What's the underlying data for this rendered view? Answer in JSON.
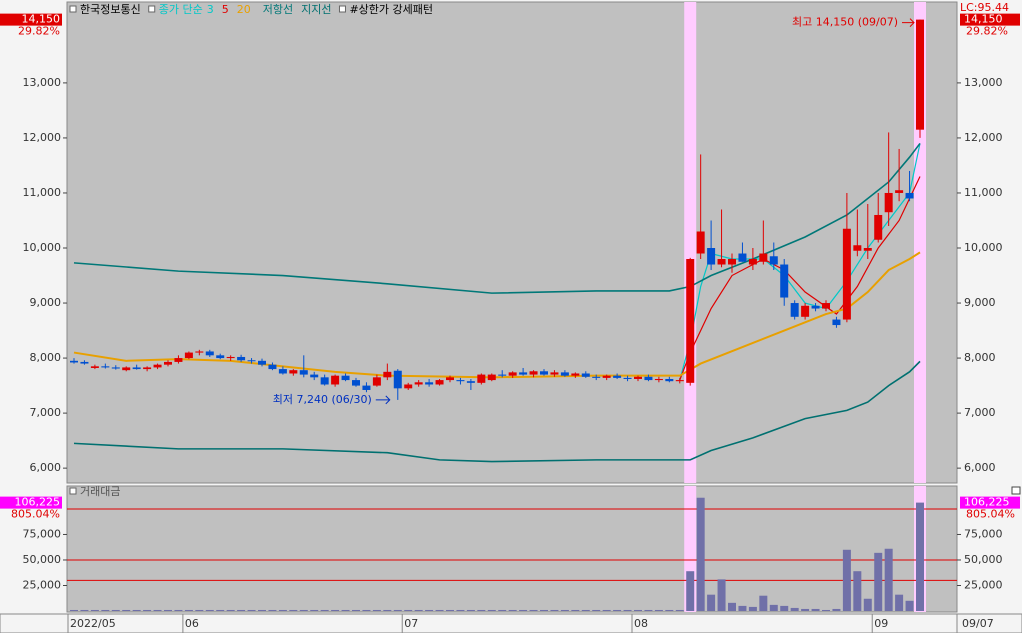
{
  "chart_data": {
    "type": "candlestick",
    "title": "한국정보통신",
    "ma_label": "종가 단순",
    "pattern_label": "#상한가 강세패턴",
    "lc_label": "LC:95.44",
    "last_price": {
      "value": 14150,
      "label": "14,150"
    },
    "change_label": "29.82%",
    "high_note": "최고 14,150 (09/07)",
    "low_note": "최저 7,240 (06/30)",
    "last_date": "09/07",
    "ylim": [
      5730,
      14470
    ],
    "yticks": [
      {
        "value": 6000,
        "label": "6,000"
      },
      {
        "value": 7000,
        "label": "7,000"
      },
      {
        "value": 8000,
        "label": "8,000"
      },
      {
        "value": 9000,
        "label": "9,000"
      },
      {
        "value": 10000,
        "label": "10,000"
      },
      {
        "value": 11000,
        "label": "11,000"
      },
      {
        "value": 12000,
        "label": "12,000"
      },
      {
        "value": 13000,
        "label": "13,000"
      }
    ],
    "xlim": [
      -0.5,
      82
    ],
    "xticks": [
      {
        "value": 0,
        "label": "2022/05"
      },
      {
        "value": 11,
        "label": "06"
      },
      {
        "value": 32,
        "label": "07"
      },
      {
        "value": 54,
        "label": "08"
      },
      {
        "value": 77,
        "label": "09"
      }
    ],
    "highlight": [
      59,
      81
    ],
    "candles": [
      {
        "open": 7950,
        "high": 8000,
        "low": 7900,
        "close": 7920
      },
      {
        "open": 7930,
        "high": 7960,
        "low": 7880,
        "close": 7900
      },
      {
        "open": 7820,
        "high": 7880,
        "low": 7800,
        "close": 7850
      },
      {
        "open": 7850,
        "high": 7900,
        "low": 7810,
        "close": 7830
      },
      {
        "open": 7830,
        "high": 7870,
        "low": 7790,
        "close": 7810
      },
      {
        "open": 7780,
        "high": 7850,
        "low": 7760,
        "close": 7830
      },
      {
        "open": 7830,
        "high": 7880,
        "low": 7790,
        "close": 7800
      },
      {
        "open": 7800,
        "high": 7850,
        "low": 7760,
        "close": 7830
      },
      {
        "open": 7830,
        "high": 7900,
        "low": 7800,
        "close": 7880
      },
      {
        "open": 7880,
        "high": 7960,
        "low": 7850,
        "close": 7930
      },
      {
        "open": 7930,
        "high": 8050,
        "low": 7900,
        "close": 8000
      },
      {
        "open": 8000,
        "high": 8120,
        "low": 7980,
        "close": 8100
      },
      {
        "open": 8100,
        "high": 8150,
        "low": 8050,
        "close": 8120
      },
      {
        "open": 8120,
        "high": 8150,
        "low": 8020,
        "close": 8050
      },
      {
        "open": 8050,
        "high": 8080,
        "low": 7980,
        "close": 8000
      },
      {
        "open": 8000,
        "high": 8050,
        "low": 7950,
        "close": 8020
      },
      {
        "open": 8020,
        "high": 8060,
        "low": 7930,
        "close": 7960
      },
      {
        "open": 7960,
        "high": 8000,
        "low": 7900,
        "close": 7950
      },
      {
        "open": 7950,
        "high": 7990,
        "low": 7850,
        "close": 7880
      },
      {
        "open": 7880,
        "high": 7920,
        "low": 7780,
        "close": 7800
      },
      {
        "open": 7800,
        "high": 7850,
        "low": 7700,
        "close": 7720
      },
      {
        "open": 7720,
        "high": 7800,
        "low": 7680,
        "close": 7780
      },
      {
        "open": 7780,
        "high": 8050,
        "low": 7650,
        "close": 7700
      },
      {
        "open": 7700,
        "high": 7750,
        "low": 7600,
        "close": 7650
      },
      {
        "open": 7650,
        "high": 7700,
        "low": 7500,
        "close": 7520
      },
      {
        "open": 7520,
        "high": 7700,
        "low": 7480,
        "close": 7680
      },
      {
        "open": 7680,
        "high": 7720,
        "low": 7580,
        "close": 7600
      },
      {
        "open": 7600,
        "high": 7640,
        "low": 7480,
        "close": 7500
      },
      {
        "open": 7500,
        "high": 7560,
        "low": 7380,
        "close": 7420
      },
      {
        "open": 7500,
        "high": 7700,
        "low": 7480,
        "close": 7650
      },
      {
        "open": 7650,
        "high": 7900,
        "low": 7600,
        "close": 7750
      },
      {
        "open": 7770,
        "high": 7800,
        "low": 7240,
        "close": 7450
      },
      {
        "open": 7450,
        "high": 7550,
        "low": 7420,
        "close": 7520
      },
      {
        "open": 7520,
        "high": 7600,
        "low": 7480,
        "close": 7560
      },
      {
        "open": 7560,
        "high": 7620,
        "low": 7480,
        "close": 7520
      },
      {
        "open": 7520,
        "high": 7620,
        "low": 7500,
        "close": 7600
      },
      {
        "open": 7600,
        "high": 7680,
        "low": 7560,
        "close": 7650
      },
      {
        "open": 7600,
        "high": 7640,
        "low": 7520,
        "close": 7580
      },
      {
        "open": 7580,
        "high": 7620,
        "low": 7420,
        "close": 7550
      },
      {
        "open": 7550,
        "high": 7720,
        "low": 7520,
        "close": 7700
      },
      {
        "open": 7600,
        "high": 7720,
        "low": 7580,
        "close": 7700
      },
      {
        "open": 7700,
        "high": 7780,
        "low": 7650,
        "close": 7680
      },
      {
        "open": 7680,
        "high": 7760,
        "low": 7640,
        "close": 7740
      },
      {
        "open": 7740,
        "high": 7820,
        "low": 7680,
        "close": 7700
      },
      {
        "open": 7700,
        "high": 7780,
        "low": 7650,
        "close": 7760
      },
      {
        "open": 7760,
        "high": 7800,
        "low": 7680,
        "close": 7700
      },
      {
        "open": 7700,
        "high": 7780,
        "low": 7660,
        "close": 7740
      },
      {
        "open": 7740,
        "high": 7780,
        "low": 7660,
        "close": 7680
      },
      {
        "open": 7680,
        "high": 7740,
        "low": 7640,
        "close": 7720
      },
      {
        "open": 7720,
        "high": 7760,
        "low": 7640,
        "close": 7660
      },
      {
        "open": 7660,
        "high": 7700,
        "low": 7600,
        "close": 7640
      },
      {
        "open": 7640,
        "high": 7700,
        "low": 7600,
        "close": 7680
      },
      {
        "open": 7680,
        "high": 7720,
        "low": 7620,
        "close": 7640
      },
      {
        "open": 7640,
        "high": 7680,
        "low": 7580,
        "close": 7620
      },
      {
        "open": 7620,
        "high": 7680,
        "low": 7580,
        "close": 7660
      },
      {
        "open": 7660,
        "high": 7700,
        "low": 7580,
        "close": 7600
      },
      {
        "open": 7600,
        "high": 7660,
        "low": 7560,
        "close": 7620
      },
      {
        "open": 7620,
        "high": 7660,
        "low": 7560,
        "close": 7580
      },
      {
        "open": 7580,
        "high": 7640,
        "low": 7540,
        "close": 7600
      },
      {
        "open": 7550,
        "high": 9820,
        "low": 7500,
        "close": 9800
      },
      {
        "open": 9900,
        "high": 11700,
        "low": 9800,
        "close": 10300
      },
      {
        "open": 10000,
        "high": 10500,
        "low": 9600,
        "close": 9700
      },
      {
        "open": 9700,
        "high": 10700,
        "low": 9650,
        "close": 9800
      },
      {
        "open": 9700,
        "high": 9900,
        "low": 9550,
        "close": 9800
      },
      {
        "open": 9900,
        "high": 10100,
        "low": 9750,
        "close": 9750
      },
      {
        "open": 9700,
        "high": 10000,
        "low": 9600,
        "close": 9800
      },
      {
        "open": 9750,
        "high": 10500,
        "low": 9700,
        "close": 9900
      },
      {
        "open": 9850,
        "high": 10100,
        "low": 9600,
        "close": 9700
      },
      {
        "open": 9700,
        "high": 9800,
        "low": 8950,
        "close": 9100
      },
      {
        "open": 9000,
        "high": 9050,
        "low": 8700,
        "close": 8750
      },
      {
        "open": 8750,
        "high": 9000,
        "low": 8700,
        "close": 8950
      },
      {
        "open": 8950,
        "high": 9000,
        "low": 8850,
        "close": 8900
      },
      {
        "open": 8900,
        "high": 9050,
        "low": 8850,
        "close": 9000
      },
      {
        "open": 8700,
        "high": 8750,
        "low": 8550,
        "close": 8600
      },
      {
        "open": 8700,
        "high": 11000,
        "low": 8650,
        "close": 10350
      },
      {
        "open": 9950,
        "high": 10700,
        "low": 9850,
        "close": 10050
      },
      {
        "open": 9950,
        "high": 10800,
        "low": 9800,
        "close": 10000
      },
      {
        "open": 10150,
        "high": 11000,
        "low": 10100,
        "close": 10600
      },
      {
        "open": 10650,
        "high": 12100,
        "low": 10400,
        "close": 11000
      },
      {
        "open": 11000,
        "high": 11800,
        "low": 10850,
        "close": 11050
      },
      {
        "open": 11000,
        "high": 11400,
        "low": 10850,
        "close": 10900
      },
      {
        "open": 12150,
        "high": 14150,
        "low": 12000,
        "close": 14150
      }
    ],
    "lines": [
      {
        "name": "3",
        "color": "#00c8c8",
        "x": [
          58,
          59,
          60,
          61,
          63,
          66,
          68,
          70,
          72,
          74,
          76,
          78,
          80,
          81
        ],
        "values": [
          7600,
          8300,
          9300,
          9900,
          9800,
          9800,
          9500,
          9000,
          8900,
          9400,
          10000,
          10500,
          11000,
          11900
        ]
      },
      {
        "name": "5",
        "color": "#e00000",
        "x": [
          58,
          59,
          61,
          63,
          66,
          68,
          70,
          73,
          75,
          77,
          79,
          81
        ],
        "values": [
          7600,
          8100,
          8900,
          9500,
          9800,
          9600,
          9200,
          8800,
          9300,
          10000,
          10500,
          11300
        ]
      },
      {
        "name": "20",
        "color": "#e8a000",
        "x": [
          0,
          5,
          10,
          15,
          20,
          25,
          30,
          40,
          50,
          58,
          60,
          64,
          68,
          72,
          74,
          76,
          78,
          80,
          81
        ],
        "values": [
          8100,
          7950,
          7980,
          7950,
          7850,
          7750,
          7680,
          7650,
          7680,
          7680,
          7900,
          8200,
          8500,
          8800,
          8900,
          9200,
          9600,
          9800,
          9920
        ]
      },
      {
        "name": "저항선",
        "color": "#007878",
        "x": [
          0,
          10,
          20,
          30,
          40,
          50,
          57,
          59,
          61,
          65,
          70,
          74,
          76,
          78,
          80,
          81
        ],
        "values": [
          9730,
          9580,
          9500,
          9350,
          9180,
          9220,
          9220,
          9300,
          9500,
          9800,
          10200,
          10600,
          10900,
          11200,
          11650,
          11900
        ]
      },
      {
        "name": "지지선",
        "color": "#007070",
        "x": [
          0,
          10,
          20,
          30,
          35,
          40,
          50,
          59,
          61,
          65,
          70,
          74,
          76,
          78,
          80,
          81
        ],
        "values": [
          6450,
          6350,
          6350,
          6280,
          6150,
          6120,
          6150,
          6150,
          6320,
          6550,
          6900,
          7050,
          7200,
          7500,
          7750,
          7940
        ]
      }
    ],
    "volume": {
      "title": "거래대금",
      "color": "#7070a8",
      "last": {
        "value": 106225,
        "label": "106,225"
      },
      "change_label": "805.04%",
      "ylim": [
        0,
        122500
      ],
      "yticks": [
        {
          "value": 25000,
          "label": "25,000"
        },
        {
          "value": 50000,
          "label": "50,000"
        },
        {
          "value": 75000,
          "label": "75,000"
        }
      ],
      "levels": [
        100000,
        50000,
        30000
      ],
      "values": [
        1000,
        1000,
        1000,
        1000,
        1000,
        1000,
        1000,
        1000,
        1000,
        1000,
        1000,
        1000,
        1000,
        1000,
        1000,
        1000,
        1000,
        1000,
        1000,
        1000,
        1000,
        1000,
        1000,
        1000,
        1000,
        1000,
        1000,
        1000,
        1000,
        1000,
        1000,
        1000,
        1000,
        1000,
        1000,
        1000,
        1000,
        1000,
        1000,
        1000,
        1000,
        1000,
        1000,
        1000,
        1000,
        1000,
        1000,
        1000,
        1000,
        1000,
        1000,
        1000,
        1000,
        1000,
        1000,
        1000,
        1000,
        1000,
        1000,
        39000,
        111000,
        16000,
        31000,
        8000,
        5000,
        4000,
        15000,
        6000,
        5000,
        3000,
        2000,
        2000,
        1000,
        2000,
        60000,
        39000,
        12000,
        57000,
        61000,
        16000,
        10000,
        106225
      ]
    }
  }
}
